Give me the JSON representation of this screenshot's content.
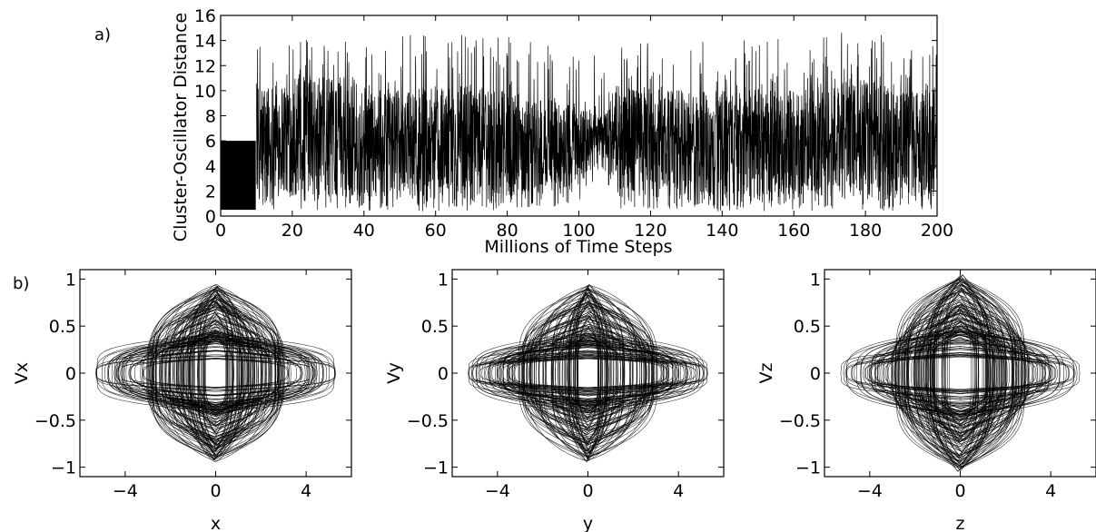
{
  "panel_labels": [
    "a)",
    "b)"
  ],
  "chart_data": [
    {
      "type": "line",
      "xlabel": "Millions of Time Steps",
      "ylabel": "Cluster-Oscillator Distance",
      "xlim": [
        0,
        200
      ],
      "ylim": [
        0,
        16
      ],
      "xticks": [
        0,
        20,
        40,
        60,
        80,
        100,
        120,
        140,
        160,
        180,
        200
      ],
      "yticks": [
        0,
        2,
        4,
        6,
        8,
        10,
        12,
        14,
        16
      ],
      "grid": false,
      "series_color": "#000000",
      "initial_segment": {
        "x": [
          0,
          9.8
        ],
        "y_range": [
          0.5,
          6.0
        ]
      },
      "band_after": {
        "x": [
          10,
          20,
          30,
          40,
          50,
          60,
          70,
          80,
          90,
          100,
          107,
          110,
          120,
          130,
          140,
          150,
          160,
          170,
          180,
          190,
          200
        ],
        "typical_low": [
          1.5,
          1.5,
          1.5,
          1.5,
          1.5,
          1.5,
          1.5,
          1.5,
          2.0,
          2.5,
          4.5,
          2.0,
          1.5,
          1.5,
          1.5,
          1.5,
          1.5,
          1.5,
          1.5,
          1.5,
          1.5
        ],
        "typical_high": [
          10.5,
          11.5,
          11.0,
          10.5,
          10.0,
          10.5,
          10.5,
          10.0,
          9.5,
          9.0,
          8.0,
          10.5,
          10.5,
          10.0,
          10.0,
          10.5,
          10.0,
          10.5,
          11.0,
          11.0,
          10.5
        ],
        "peak_max": [
          14.2,
          15.5,
          14.8,
          14.9,
          14.3,
          15.2,
          14.5,
          14.5,
          14.2,
          13.8,
          12.5,
          14.0,
          14.5,
          14.0,
          14.4,
          14.0,
          14.8,
          14.6,
          14.8,
          14.2,
          13.8
        ],
        "min": [
          0.5,
          0.4,
          0.3,
          0.4,
          0.4,
          0.3,
          0.4,
          0.5,
          0.6,
          1.0,
          3.5,
          0.6,
          0.4,
          0.4,
          0.3,
          0.4,
          0.4,
          0.3,
          0.3,
          0.3,
          0.5
        ]
      }
    },
    {
      "type": "line",
      "xlabel": "x",
      "ylabel": "Vx",
      "xlim": [
        -6,
        6
      ],
      "ylim": [
        -1.1,
        1.1
      ],
      "xticks": [
        -4,
        0,
        4
      ],
      "yticks": [
        1,
        0.5,
        0,
        -0.5,
        -1
      ],
      "ytick_labels": [
        "1",
        "0.5",
        "0",
        "−0.5",
        "−1"
      ],
      "xtick_labels": [
        "−4",
        "0",
        "4"
      ],
      "grid": false,
      "orbit_envelope": {
        "x_extent": 5.3,
        "v_extent": 0.95,
        "n_orbits": 140
      }
    },
    {
      "type": "line",
      "xlabel": "y",
      "ylabel": "Vy",
      "xlim": [
        -6,
        6
      ],
      "ylim": [
        -1.1,
        1.1
      ],
      "xticks": [
        -4,
        0,
        4
      ],
      "yticks": [
        1,
        0.5,
        0,
        -0.5,
        -1
      ],
      "ytick_labels": [
        "1",
        "0.5",
        "0",
        "−0.5",
        "−1"
      ],
      "xtick_labels": [
        "−4",
        "0",
        "4"
      ],
      "grid": false,
      "orbit_envelope": {
        "x_extent": 5.3,
        "v_extent": 0.95,
        "n_orbits": 140
      }
    },
    {
      "type": "line",
      "xlabel": "z",
      "ylabel": "Vz",
      "xlim": [
        -6,
        6
      ],
      "ylim": [
        -1.1,
        1.1
      ],
      "xticks": [
        -4,
        0,
        4
      ],
      "yticks": [
        1,
        0.5,
        0,
        -0.5,
        -1
      ],
      "ytick_labels": [
        "1",
        "0.5",
        "0",
        "−0.5",
        "−1"
      ],
      "xtick_labels": [
        "−4",
        "0",
        "4"
      ],
      "grid": false,
      "orbit_envelope": {
        "x_extent": 5.3,
        "v_extent": 1.05,
        "n_orbits": 140
      }
    }
  ]
}
